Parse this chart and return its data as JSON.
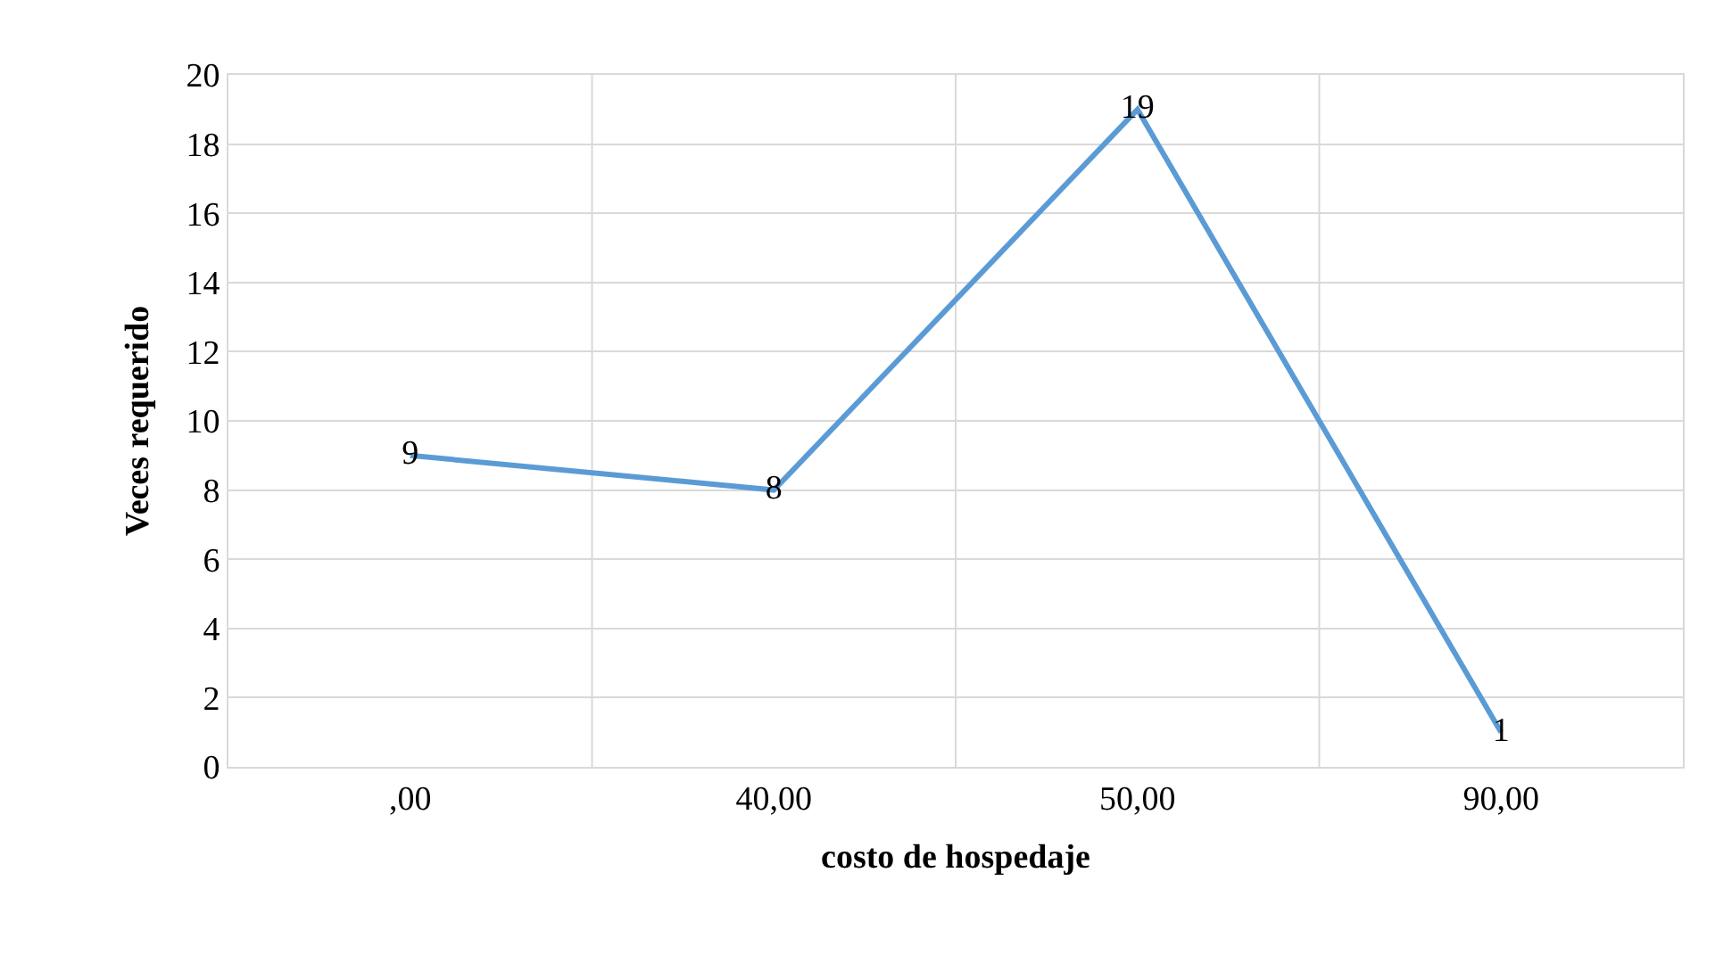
{
  "chart_data": {
    "type": "line",
    "xlabel": "costo de hospedaje",
    "ylabel": "Veces requerido",
    "categories": [
      ",00",
      "40,00",
      "50,00",
      "90,00"
    ],
    "series": [
      {
        "color": "#5b9bd5",
        "values": [
          9,
          8,
          19,
          1
        ]
      }
    ],
    "ylim": [
      0,
      20
    ],
    "yticks": [
      0,
      2,
      4,
      6,
      8,
      10,
      12,
      14,
      16,
      18,
      20
    ],
    "grid": true,
    "data_labels": true,
    "marker": "none",
    "line_style": "solid"
  }
}
